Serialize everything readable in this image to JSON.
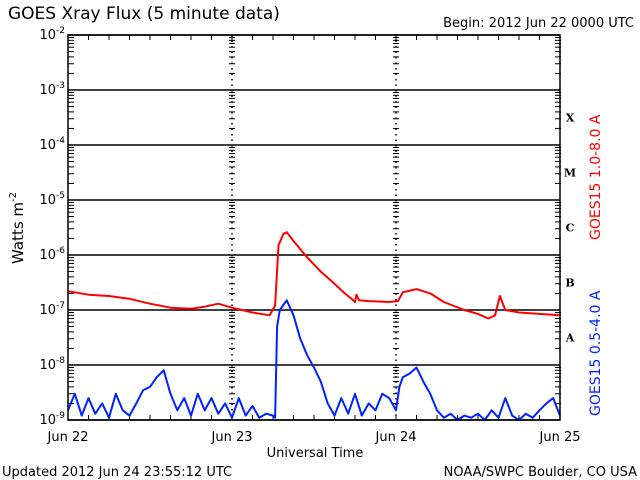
{
  "chart_data": {
    "type": "line",
    "title": "GOES Xray Flux (5 minute data)",
    "begin_label": "Begin:  2012 Jun 22 0000 UTC",
    "xlabel": "Universal Time",
    "ylabel": "Watts m",
    "ylabel_sup": "-2",
    "yscale": "log",
    "ylim": [
      1e-09,
      0.01
    ],
    "xlim_hours": [
      0,
      72
    ],
    "grid": true,
    "x_ticks": [
      {
        "hour": 0,
        "label": "Jun 22"
      },
      {
        "hour": 24,
        "label": "Jun 23"
      },
      {
        "hour": 48,
        "label": "Jun 24"
      },
      {
        "hour": 72,
        "label": "Jun 25"
      }
    ],
    "y_ticks": [
      {
        "exp": -2,
        "base": "10",
        "sup": "-2"
      },
      {
        "exp": -3,
        "base": "10",
        "sup": "-3"
      },
      {
        "exp": -4,
        "base": "10",
        "sup": "-4"
      },
      {
        "exp": -5,
        "base": "10",
        "sup": "-5"
      },
      {
        "exp": -6,
        "base": "10",
        "sup": "-6"
      },
      {
        "exp": -7,
        "base": "10",
        "sup": "-7"
      },
      {
        "exp": -8,
        "base": "10",
        "sup": "-8"
      },
      {
        "exp": -9,
        "base": "10",
        "sup": "-9"
      }
    ],
    "flare_classes": [
      {
        "label": "X",
        "exp": -3.5
      },
      {
        "label": "M",
        "exp": -4.5
      },
      {
        "label": "C",
        "exp": -5.5
      },
      {
        "label": "B",
        "exp": -6.5
      },
      {
        "label": "A",
        "exp": -7.5
      }
    ],
    "series": [
      {
        "name": "GOES15 1.0-8.0 A",
        "color": "#ff0000",
        "points": [
          [
            0,
            2.2e-07
          ],
          [
            3,
            1.9e-07
          ],
          [
            6,
            1.8e-07
          ],
          [
            9,
            1.6e-07
          ],
          [
            12,
            1.3e-07
          ],
          [
            15,
            1.1e-07
          ],
          [
            18,
            1.05e-07
          ],
          [
            20,
            1.15e-07
          ],
          [
            22,
            1.3e-07
          ],
          [
            24,
            1.1e-07
          ],
          [
            27,
            9e-08
          ],
          [
            29.5,
            8e-08
          ],
          [
            30.3,
            1.2e-07
          ],
          [
            30.8,
            1.5e-06
          ],
          [
            31.5,
            2.4e-06
          ],
          [
            32,
            2.6e-06
          ],
          [
            33,
            1.8e-06
          ],
          [
            35,
            9e-07
          ],
          [
            37,
            5e-07
          ],
          [
            39,
            3e-07
          ],
          [
            40.5,
            2e-07
          ],
          [
            41.5,
            1.6e-07
          ],
          [
            42,
            1.4e-07
          ],
          [
            42.2,
            1.9e-07
          ],
          [
            42.6,
            1.5e-07
          ],
          [
            44,
            1.45e-07
          ],
          [
            47,
            1.4e-07
          ],
          [
            48.3,
            1.45e-07
          ],
          [
            49,
            2.1e-07
          ],
          [
            51,
            2.4e-07
          ],
          [
            53,
            2e-07
          ],
          [
            55,
            1.4e-07
          ],
          [
            58,
            1e-07
          ],
          [
            60,
            8.5e-08
          ],
          [
            61.5,
            7e-08
          ],
          [
            62.5,
            8e-08
          ],
          [
            63.2,
            1.8e-07
          ],
          [
            64,
            1e-07
          ],
          [
            66,
            9e-08
          ],
          [
            69,
            8.5e-08
          ],
          [
            72,
            8e-08
          ]
        ]
      },
      {
        "name": "GOES15 0.5-4.0 A",
        "color": "#0022ff",
        "points": [
          [
            0,
            1.5e-09
          ],
          [
            1,
            3e-09
          ],
          [
            2,
            1.2e-09
          ],
          [
            3,
            2.5e-09
          ],
          [
            4,
            1.3e-09
          ],
          [
            5,
            2e-09
          ],
          [
            6,
            1.1e-09
          ],
          [
            7,
            3e-09
          ],
          [
            8,
            1.5e-09
          ],
          [
            9,
            1.2e-09
          ],
          [
            10,
            2e-09
          ],
          [
            11,
            3.5e-09
          ],
          [
            12,
            4e-09
          ],
          [
            13,
            6e-09
          ],
          [
            14,
            8e-09
          ],
          [
            15,
            3e-09
          ],
          [
            16,
            1.5e-09
          ],
          [
            17,
            2.5e-09
          ],
          [
            18,
            1.2e-09
          ],
          [
            19,
            3e-09
          ],
          [
            20,
            1.5e-09
          ],
          [
            21,
            2.5e-09
          ],
          [
            22,
            1.3e-09
          ],
          [
            23,
            2e-09
          ],
          [
            24,
            1.1e-09
          ],
          [
            25,
            2.5e-09
          ],
          [
            26,
            1.2e-09
          ],
          [
            27,
            1.8e-09
          ],
          [
            28,
            1.1e-09
          ],
          [
            29,
            1.3e-09
          ],
          [
            30,
            1.2e-09
          ],
          [
            30.3,
            1.1e-09
          ],
          [
            30.6,
            5e-08
          ],
          [
            31,
            1e-07
          ],
          [
            32,
            1.5e-07
          ],
          [
            33,
            8e-08
          ],
          [
            34,
            3e-08
          ],
          [
            35,
            1.5e-08
          ],
          [
            36,
            9e-09
          ],
          [
            37,
            5e-09
          ],
          [
            38,
            2e-09
          ],
          [
            39,
            1.2e-09
          ],
          [
            40,
            2.5e-09
          ],
          [
            41,
            1.3e-09
          ],
          [
            42,
            3e-09
          ],
          [
            43,
            1.2e-09
          ],
          [
            44,
            2e-09
          ],
          [
            45,
            1.5e-09
          ],
          [
            46,
            3e-09
          ],
          [
            47,
            2.5e-09
          ],
          [
            48,
            1.5e-09
          ],
          [
            48.5,
            4e-09
          ],
          [
            49,
            6e-09
          ],
          [
            50,
            7e-09
          ],
          [
            51,
            9e-09
          ],
          [
            52,
            5e-09
          ],
          [
            53,
            3e-09
          ],
          [
            54,
            1.5e-09
          ],
          [
            55,
            1.1e-09
          ],
          [
            56,
            1.3e-09
          ],
          [
            57,
            1e-09
          ],
          [
            58,
            1.2e-09
          ],
          [
            59,
            1.1e-09
          ],
          [
            60,
            1.3e-09
          ],
          [
            61,
            1e-09
          ],
          [
            62,
            1.5e-09
          ],
          [
            63,
            1.1e-09
          ],
          [
            64,
            2.5e-09
          ],
          [
            65,
            1.2e-09
          ],
          [
            66,
            1e-09
          ],
          [
            67,
            1.3e-09
          ],
          [
            68,
            1.1e-09
          ],
          [
            69,
            1.5e-09
          ],
          [
            70,
            2e-09
          ],
          [
            71,
            2.5e-09
          ],
          [
            72,
            1.2e-09
          ]
        ]
      }
    ]
  },
  "footer": {
    "updated": "Updated 2012 Jun 24 23:55:12 UTC",
    "credit": "NOAA/SWPC Boulder, CO USA"
  }
}
